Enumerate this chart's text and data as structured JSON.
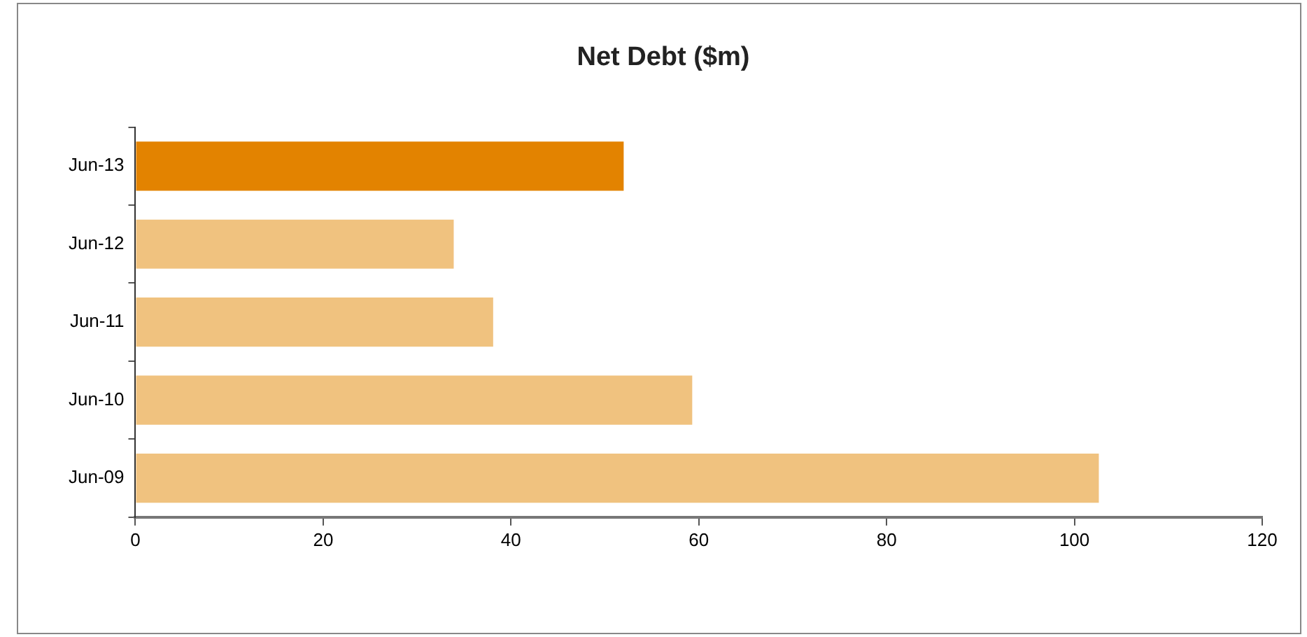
{
  "chart_data": {
    "type": "bar",
    "orientation": "horizontal",
    "title": "Net Debt ($m)",
    "categories": [
      "Jun-13",
      "Jun-12",
      "Jun-11",
      "Jun-10",
      "Jun-09"
    ],
    "values": [
      52.0,
      33.9,
      38.1,
      59.3,
      102.6
    ],
    "colors": [
      "#e38300",
      "#f0c27f",
      "#f0c27f",
      "#f0c27f",
      "#f0c27f"
    ],
    "xlim": [
      0,
      120
    ],
    "xticks": [
      0,
      20,
      40,
      60,
      80,
      100,
      120
    ],
    "grid": false,
    "legend": false
  }
}
